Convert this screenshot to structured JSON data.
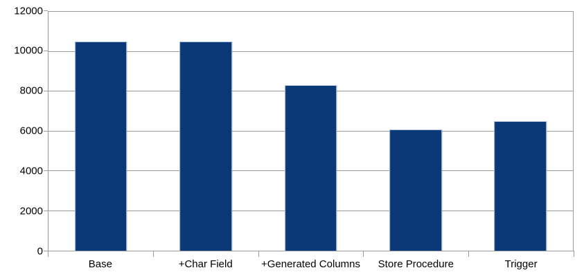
{
  "chart_data": {
    "type": "bar",
    "title": "",
    "xlabel": "",
    "ylabel": "",
    "categories": [
      "Base",
      "+Char Field",
      "+Generated Columns",
      "Store Procedure",
      "Trigger"
    ],
    "values": [
      10500,
      10500,
      8300,
      6100,
      6500
    ],
    "ylim": [
      0,
      12000
    ],
    "yticks": [
      0,
      2000,
      4000,
      6000,
      8000,
      10000,
      12000
    ],
    "ytick_labels": [
      "0",
      "2000",
      "4000",
      "6000",
      "8000",
      "10000",
      "12000"
    ],
    "grid": "horizontal",
    "legend": "none",
    "style": {
      "bar_fill": "#0b3877",
      "bar_border": "#abc0dc",
      "gridline_color": "#9b9b9b",
      "text_color": "#000000",
      "background": "#ffffff"
    }
  }
}
